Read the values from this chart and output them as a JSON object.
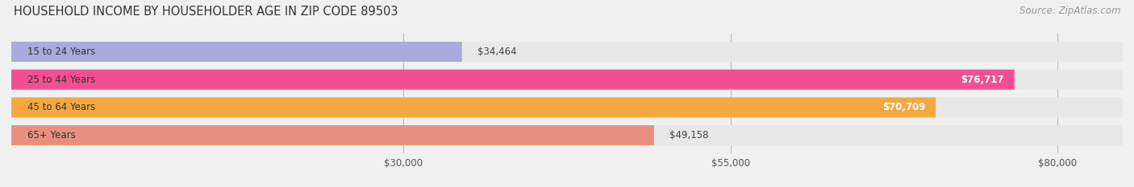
{
  "title": "HOUSEHOLD INCOME BY HOUSEHOLDER AGE IN ZIP CODE 89503",
  "source": "Source: ZipAtlas.com",
  "categories": [
    "15 to 24 Years",
    "25 to 44 Years",
    "45 to 64 Years",
    "65+ Years"
  ],
  "values": [
    34464,
    76717,
    70709,
    49158
  ],
  "bar_colors": [
    "#aaaadd",
    "#f05090",
    "#f5a840",
    "#e89080"
  ],
  "value_labels": [
    "$34,464",
    "$76,717",
    "$70,709",
    "$49,158"
  ],
  "x_ticks": [
    30000,
    55000,
    80000
  ],
  "x_tick_labels": [
    "$30,000",
    "$55,000",
    "$80,000"
  ],
  "xmin": 0,
  "xmax": 85000,
  "title_fontsize": 10.5,
  "source_fontsize": 8.5,
  "label_fontsize": 8.5,
  "tick_fontsize": 8.5,
  "background_color": "#f0f0f0",
  "bar_bg_color": "#e8e8e8",
  "white_bg": "#ffffff"
}
